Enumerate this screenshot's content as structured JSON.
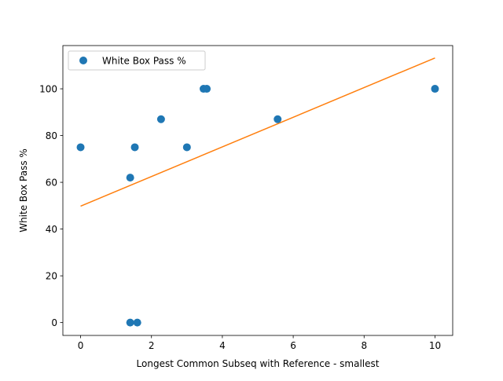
{
  "chart_data": {
    "type": "scatter",
    "xlabel": "Longest Common Subseq with Reference - smallest",
    "ylabel": "White Box Pass %",
    "xlim": [
      -0.5,
      10.5
    ],
    "ylim": [
      -5.5,
      118.5
    ],
    "xticks": [
      0,
      2,
      4,
      6,
      8,
      10
    ],
    "xtick_labels": [
      "0",
      "2",
      "4",
      "6",
      "8",
      "10"
    ],
    "yticks": [
      0,
      20,
      40,
      60,
      80,
      100
    ],
    "ytick_labels": [
      "0",
      "20",
      "40",
      "60",
      "80",
      "100"
    ],
    "grid": false,
    "legend_position": "top-left",
    "series": [
      {
        "name": "White Box Pass %",
        "kind": "points",
        "color": "#1f77b4",
        "x": [
          0,
          1.4,
          1.4,
          1.53,
          1.6,
          2.27,
          3.0,
          3.47,
          3.56,
          5.56,
          10.0
        ],
        "y": [
          75,
          62,
          0,
          75,
          0,
          87,
          75,
          100,
          100,
          87,
          100
        ]
      },
      {
        "kind": "line",
        "color": "#ff7f0e",
        "x": [
          0,
          10
        ],
        "y": [
          49.8,
          113.2
        ]
      }
    ]
  }
}
